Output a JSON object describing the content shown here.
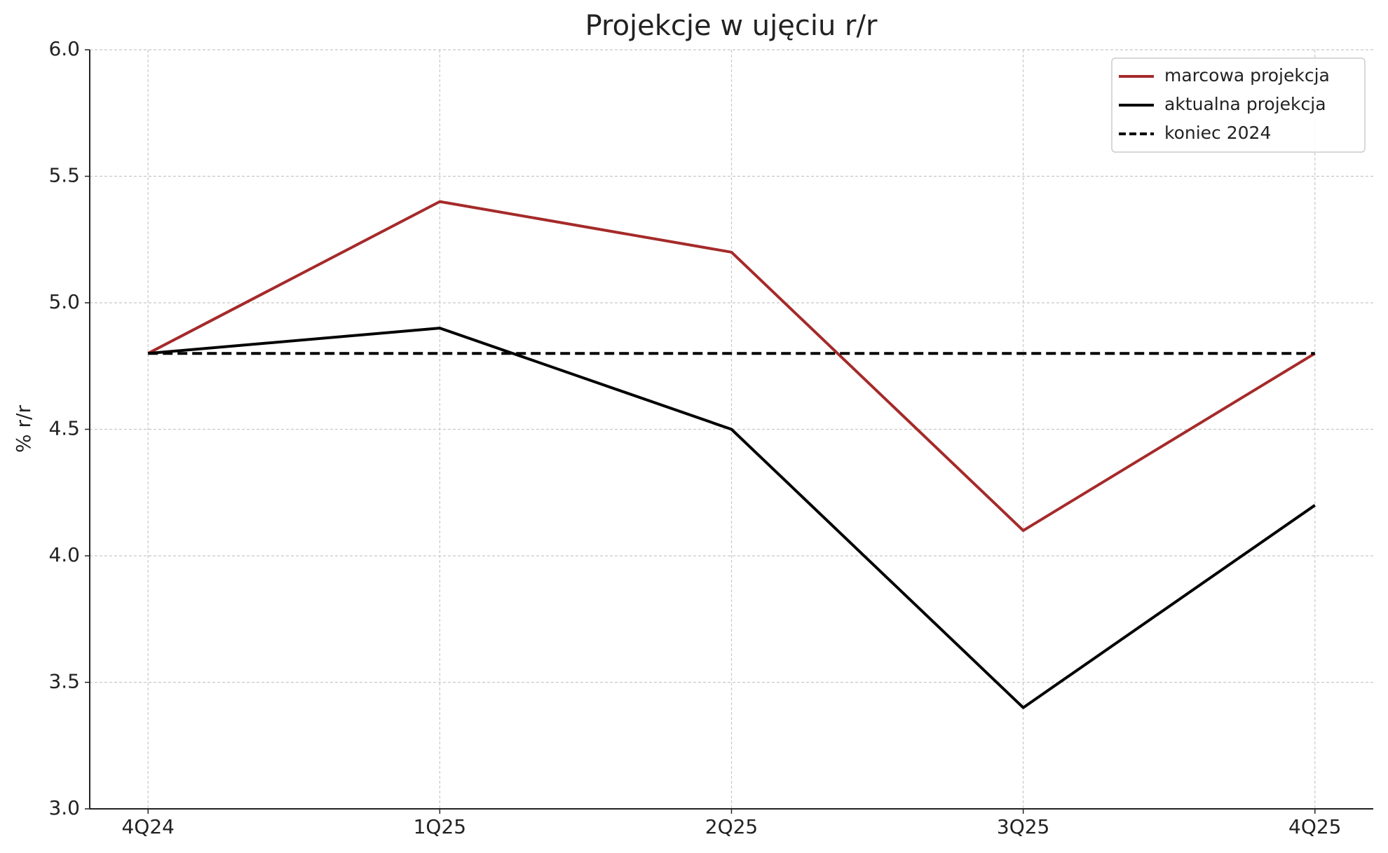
{
  "chart_data": {
    "type": "line",
    "title": "Projekcje w ujęciu r/r",
    "y_label": "% r/r",
    "categories": [
      "4Q24",
      "1Q25",
      "2Q25",
      "3Q25",
      "4Q25"
    ],
    "series": [
      {
        "name": "marcowa projekcja",
        "color": "#a52a2a",
        "line_style": "solid",
        "values": [
          4.8,
          5.4,
          5.2,
          4.1,
          4.8
        ]
      },
      {
        "name": "aktualna projekcja",
        "color": "#000000",
        "line_style": "solid",
        "values": [
          4.8,
          4.9,
          4.5,
          3.4,
          4.2
        ]
      },
      {
        "name": "koniec 2024",
        "color": "#000000",
        "line_style": "dashed",
        "values": [
          4.8,
          4.8,
          4.8,
          4.8,
          4.8
        ]
      }
    ],
    "ylim": [
      3.0,
      6.0
    ],
    "yticks": [
      {
        "value": 3,
        "label": "3.0"
      },
      3.5,
      {
        "value": 4,
        "label": "4.0"
      },
      4.5,
      {
        "value": 5,
        "label": "5.0"
      },
      5.5,
      {
        "value": 6,
        "label": "6.0"
      }
    ],
    "grid": true,
    "legend": "upper right"
  }
}
